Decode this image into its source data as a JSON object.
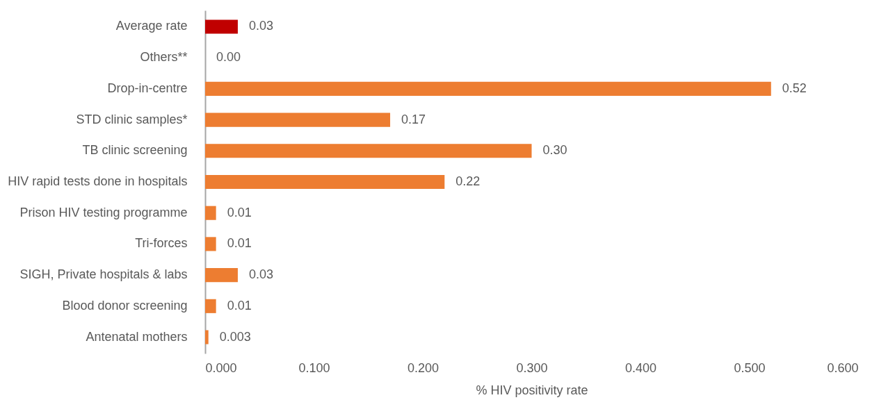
{
  "chart_data": {
    "type": "bar",
    "orientation": "horizontal",
    "xlabel": "% HIV positivity rate",
    "categories": [
      "Average rate",
      "Others**",
      "Drop-in-centre",
      "STD clinic samples*",
      "TB clinic screening",
      "HIV rapid tests done in hospitals",
      "Prison HIV testing programme",
      "Tri-forces",
      "SIGH, Private hospitals & labs",
      "Blood donor screening",
      "Antenatal mothers"
    ],
    "values": [
      0.03,
      0,
      0.52,
      0.17,
      0.3,
      0.22,
      0.01,
      0.01,
      0.03,
      0.01,
      0.003
    ],
    "value_labels": [
      "0.03",
      "0.00",
      "0.52",
      "0.17",
      "0.30",
      "0.22",
      "0.01",
      "0.01",
      "0.03",
      "0.01",
      "0.003"
    ],
    "colors": [
      "#c00000",
      "#ed7d31",
      "#ed7d31",
      "#ed7d31",
      "#ed7d31",
      "#ed7d31",
      "#ed7d31",
      "#ed7d31",
      "#ed7d31",
      "#ed7d31",
      "#ed7d31"
    ],
    "xlim": [
      0,
      0.6
    ],
    "xticks": [
      {
        "value": 0,
        "label": "0.000"
      },
      {
        "value": 0.1,
        "label": "0.100"
      },
      {
        "value": 0.2,
        "label": "0.200"
      },
      {
        "value": 0.3,
        "label": "0.300"
      },
      {
        "value": 0.4,
        "label": "0.400"
      },
      {
        "value": 0.5,
        "label": "0.500"
      },
      {
        "value": 0.6,
        "label": "0.600"
      }
    ],
    "grid": false
  }
}
